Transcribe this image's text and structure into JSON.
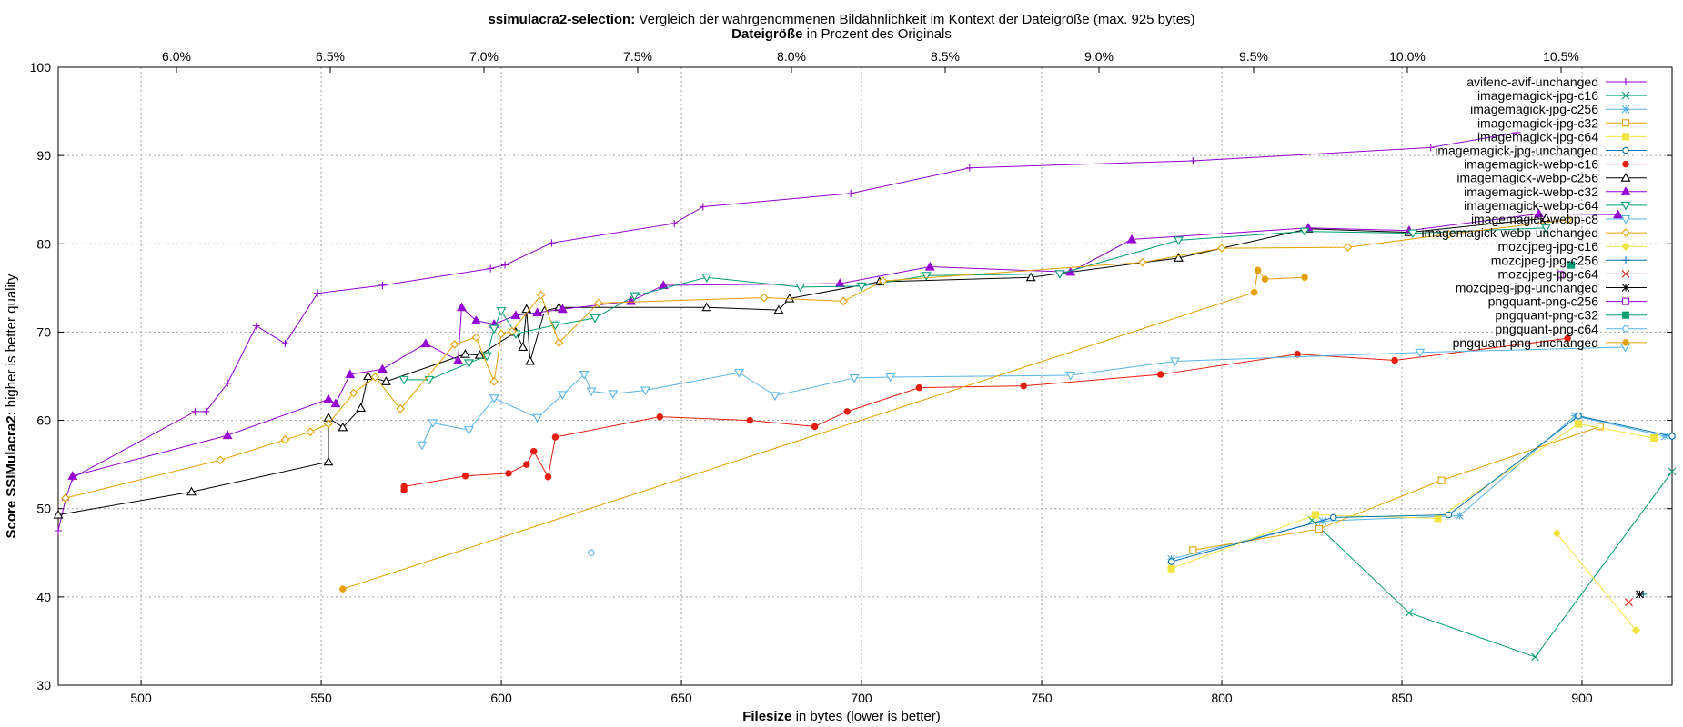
{
  "chart_data": {
    "type": "line",
    "title_bold": "ssimulacra2-selection:",
    "title_rest": " Vergleich der wahrgenommenen Bildähnlichkeit im Kontext der Dateigröße (max. 925 bytes)",
    "top_axis_label_bold": "Dateigröße",
    "top_axis_label_rest": " in Prozent des Originals",
    "xlabel_bold": "Filesize",
    "xlabel_rest": " in bytes (lower is better)",
    "ylabel_bold": "Score SSIMulacra2:",
    "ylabel_rest": " higher is better quality",
    "xlim": [
      477,
      925
    ],
    "ylim": [
      30,
      100
    ],
    "x_ticks": [
      500,
      550,
      600,
      650,
      700,
      750,
      800,
      850,
      900
    ],
    "y_ticks": [
      30,
      40,
      50,
      60,
      70,
      80,
      90,
      100
    ],
    "top_ticks": [
      "6.0%",
      "6.5%",
      "7.0%",
      "7.5%",
      "8.0%",
      "8.5%",
      "9.0%",
      "9.5%",
      "10.0%",
      "10.5%"
    ],
    "grid": true,
    "legend_position": "top-right",
    "series": [
      {
        "name": "avifenc-avif-unchanged",
        "color": "#9400d3",
        "marker": "plus",
        "points": [
          [
            477,
            47.5
          ],
          [
            479,
            51
          ],
          [
            481,
            53.5
          ],
          [
            515,
            61
          ],
          [
            518,
            61
          ],
          [
            524,
            64.2
          ],
          [
            532,
            70.7
          ],
          [
            540,
            68.7
          ],
          [
            549,
            74.4
          ],
          [
            567,
            75.3
          ],
          [
            597,
            77.2
          ],
          [
            601,
            77.6
          ],
          [
            614,
            80.1
          ],
          [
            648,
            82.3
          ],
          [
            656,
            84.2
          ],
          [
            697,
            85.7
          ],
          [
            730,
            88.6
          ],
          [
            792,
            89.4
          ],
          [
            858,
            90.9
          ],
          [
            882,
            92.6
          ]
        ]
      },
      {
        "name": "imagemagick-jpg-c16",
        "color": "#009e73",
        "marker": "x",
        "points": [
          [
            825,
            48.7
          ],
          [
            852,
            38.2
          ],
          [
            887,
            33.2
          ],
          [
            925,
            54.2
          ]
        ]
      },
      {
        "name": "imagemagick-jpg-c256",
        "color": "#56b4e9",
        "marker": "star",
        "points": [
          [
            786,
            44.3
          ],
          [
            828,
            48.6
          ],
          [
            866,
            49.2
          ],
          [
            898,
            60.5
          ],
          [
            923,
            58.2
          ]
        ]
      },
      {
        "name": "imagemagick-jpg-c32",
        "color": "#e69f00",
        "marker": "square",
        "points": [
          [
            792,
            45.3
          ],
          [
            827,
            47.7
          ],
          [
            861,
            53.2
          ],
          [
            905,
            59.3
          ]
        ]
      },
      {
        "name": "imagemagick-jpg-c64",
        "color": "#f0e442",
        "marker": "squarefill",
        "points": [
          [
            786,
            43.2
          ],
          [
            826,
            49.3
          ],
          [
            860,
            48.9
          ],
          [
            899,
            59.6
          ],
          [
            920,
            58
          ]
        ]
      },
      {
        "name": "imagemagick-jpg-unchanged",
        "color": "#0072b2",
        "marker": "circle",
        "points": [
          [
            786,
            44
          ],
          [
            831,
            49
          ],
          [
            863,
            49.3
          ],
          [
            899,
            60.5
          ],
          [
            925,
            58.2
          ]
        ]
      },
      {
        "name": "imagemagick-webp-c16",
        "color": "#e51e10",
        "marker": "circlefill",
        "points": [
          [
            573,
            52.1
          ],
          [
            573,
            52.5
          ],
          [
            590,
            53.7
          ],
          [
            602,
            54
          ],
          [
            607,
            55
          ],
          [
            609,
            56.5
          ],
          [
            613,
            53.6
          ],
          [
            615,
            58.1
          ],
          [
            644,
            60.4
          ],
          [
            669,
            60
          ],
          [
            687,
            59.3
          ],
          [
            696,
            61
          ],
          [
            716,
            63.7
          ],
          [
            745,
            63.9
          ],
          [
            783,
            65.2
          ],
          [
            821,
            67.5
          ],
          [
            848,
            66.8
          ],
          [
            896,
            69.3
          ]
        ]
      },
      {
        "name": "imagemagick-webp-c256",
        "color": "#000000",
        "marker": "triangle",
        "points": [
          [
            477,
            49.3
          ],
          [
            514,
            51.9
          ],
          [
            552,
            55.3
          ],
          [
            552,
            60.3
          ],
          [
            556,
            59.2
          ],
          [
            561,
            61.4
          ],
          [
            563,
            65
          ],
          [
            568,
            64.4
          ],
          [
            590,
            67.5
          ],
          [
            594,
            67.4
          ],
          [
            604,
            70
          ],
          [
            606,
            68.3
          ],
          [
            607,
            72.6
          ],
          [
            608,
            66.7
          ],
          [
            612,
            72.4
          ],
          [
            616,
            72.8
          ],
          [
            657,
            72.8
          ],
          [
            677,
            72.5
          ],
          [
            680,
            73.8
          ],
          [
            705,
            75.7
          ],
          [
            747,
            76.2
          ],
          [
            788,
            78.4
          ],
          [
            824,
            81.7
          ],
          [
            852,
            81.3
          ],
          [
            890,
            82.9
          ]
        ]
      },
      {
        "name": "imagemagick-webp-c32",
        "color": "#9400d3",
        "marker": "trianglefill",
        "points": [
          [
            481,
            53.7
          ],
          [
            524,
            58.3
          ],
          [
            552,
            62.4
          ],
          [
            554,
            61.9
          ],
          [
            558,
            65.2
          ],
          [
            567,
            65.8
          ],
          [
            579,
            68.7
          ],
          [
            588,
            66.8
          ],
          [
            589,
            72.8
          ],
          [
            593,
            71.3
          ],
          [
            598,
            70.9
          ],
          [
            604,
            71.9
          ],
          [
            610,
            72.2
          ],
          [
            617,
            72.6
          ],
          [
            636,
            73.5
          ],
          [
            645,
            75.3
          ],
          [
            694,
            75.5
          ],
          [
            719,
            77.4
          ],
          [
            758,
            76.8
          ],
          [
            775,
            80.5
          ],
          [
            824,
            81.8
          ],
          [
            852,
            81.5
          ],
          [
            888,
            83.4
          ],
          [
            910,
            83.3
          ]
        ]
      },
      {
        "name": "imagemagick-webp-c64",
        "color": "#009e73",
        "marker": "tridown",
        "points": [
          [
            573,
            64.6
          ],
          [
            580,
            64.6
          ],
          [
            591,
            66.5
          ],
          [
            596,
            67.3
          ],
          [
            598,
            70.4
          ],
          [
            600,
            72.4
          ],
          [
            604,
            69.8
          ],
          [
            615,
            70.8
          ],
          [
            626,
            71.6
          ],
          [
            637,
            74.1
          ],
          [
            657,
            76.2
          ],
          [
            683,
            75.1
          ],
          [
            700,
            75.2
          ],
          [
            718,
            76.4
          ],
          [
            755,
            76.6
          ],
          [
            788,
            80.4
          ],
          [
            823,
            81.4
          ],
          [
            853,
            81.2
          ],
          [
            890,
            81.8
          ]
        ]
      },
      {
        "name": "imagemagick-webp-c8",
        "color": "#56b4e9",
        "marker": "tridown",
        "points": [
          [
            578,
            57.2
          ],
          [
            581,
            59.7
          ],
          [
            591,
            58.9
          ],
          [
            598,
            62.5
          ],
          [
            610,
            60.3
          ],
          [
            617,
            62.9
          ],
          [
            623,
            65.2
          ],
          [
            625,
            63.3
          ],
          [
            631,
            63
          ],
          [
            640,
            63.4
          ],
          [
            666,
            65.4
          ],
          [
            676,
            62.8
          ],
          [
            698,
            64.8
          ],
          [
            708,
            64.9
          ],
          [
            758,
            65.1
          ],
          [
            787,
            66.7
          ],
          [
            855,
            67.7
          ],
          [
            912,
            68.3
          ]
        ]
      },
      {
        "name": "imagemagick-webp-unchanged",
        "color": "#e69f00",
        "marker": "diamond",
        "points": [
          [
            479,
            51.2
          ],
          [
            522,
            55.5
          ],
          [
            540,
            57.8
          ],
          [
            547,
            58.7
          ],
          [
            552,
            59.6
          ],
          [
            559,
            63.1
          ],
          [
            565,
            64.9
          ],
          [
            572,
            61.3
          ],
          [
            587,
            68.6
          ],
          [
            593,
            69.4
          ],
          [
            598,
            64.4
          ],
          [
            600,
            69.8
          ],
          [
            603,
            70.1
          ],
          [
            611,
            74.2
          ],
          [
            616,
            68.8
          ],
          [
            627,
            73.3
          ],
          [
            673,
            73.9
          ],
          [
            695,
            73.5
          ],
          [
            706,
            75.8
          ],
          [
            778,
            77.9
          ],
          [
            800,
            79.5
          ],
          [
            835,
            79.6
          ],
          [
            863,
            81.1
          ],
          [
            896,
            82.7
          ]
        ]
      },
      {
        "name": "mozcjpeg-jpg-c16",
        "color": "#f0e442",
        "marker": "diamondfill",
        "points": [
          [
            893,
            47.2
          ],
          [
            915,
            36.2
          ]
        ]
      },
      {
        "name": "mozcjpeg-jpg-c256",
        "color": "#0072b2",
        "marker": "plus",
        "points": [
          [
            917,
            40.3
          ]
        ]
      },
      {
        "name": "mozcjpeg-jpg-c64",
        "color": "#e51e10",
        "marker": "x",
        "points": [
          [
            913,
            39.4
          ]
        ]
      },
      {
        "name": "mozcjpeg-jpg-unchanged",
        "color": "#000000",
        "marker": "star",
        "points": [
          [
            916,
            40.3
          ]
        ]
      },
      {
        "name": "pngquant-png-c256",
        "color": "#9400d3",
        "marker": "square",
        "points": [
          [
            894,
            76.5
          ]
        ]
      },
      {
        "name": "pngquant-png-c32",
        "color": "#009e73",
        "marker": "squarefill",
        "points": [
          [
            897,
            77.6
          ]
        ]
      },
      {
        "name": "pngquant-png-c64",
        "color": "#56b4e9",
        "marker": "circle",
        "points": [
          [
            625,
            45
          ]
        ]
      },
      {
        "name": "pngquant-png-unchanged",
        "color": "#e69f00",
        "marker": "circlefill",
        "points": [
          [
            556,
            40.9
          ],
          [
            809,
            74.5
          ],
          [
            810,
            77
          ],
          [
            812,
            76
          ],
          [
            823,
            76.2
          ]
        ]
      }
    ]
  }
}
